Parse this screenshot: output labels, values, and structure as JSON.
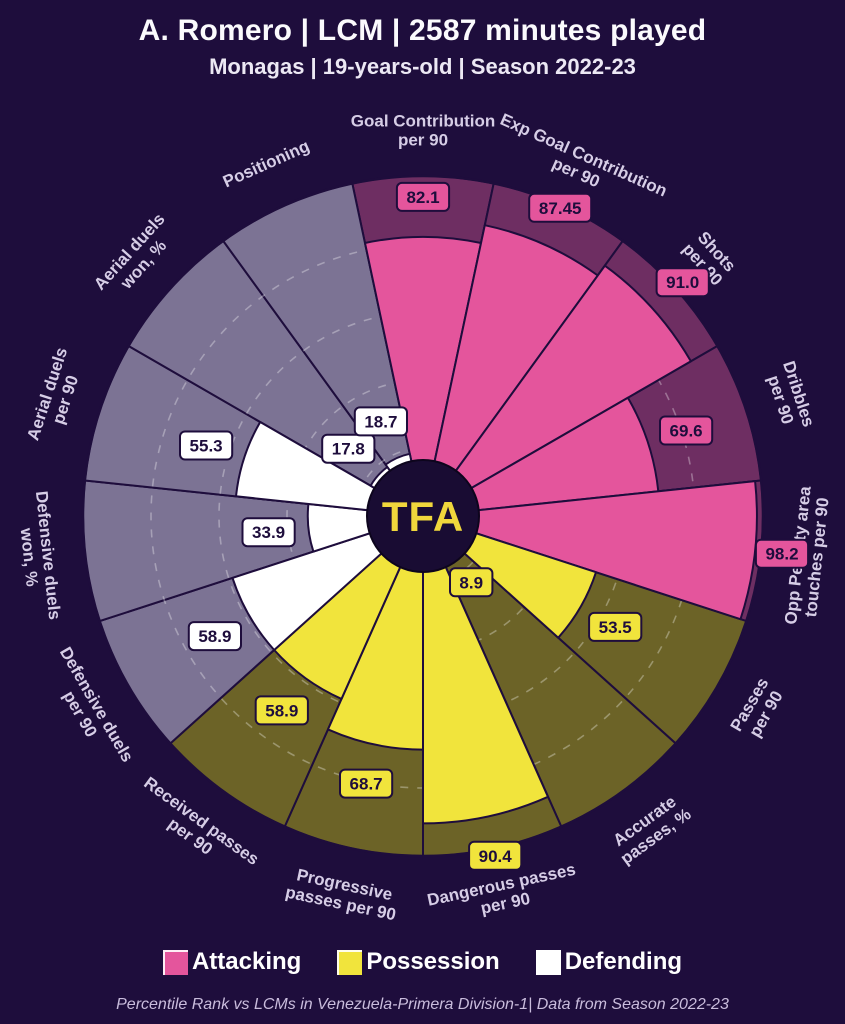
{
  "header": {
    "title": "A. Romero | LCM | 2587 minutes played",
    "subtitle": "Monagas | 19-years-old | Season 2022-23"
  },
  "chart_data": {
    "type": "pie",
    "subtype": "percentile-pizza",
    "title": "A. Romero | LCM | 2587 minutes played",
    "center_logo": "TFA",
    "max_value": 100,
    "gridlines_pct": [
      20,
      40,
      60,
      80
    ],
    "categories": [
      "Goal Contribution per 90",
      "Exp Goal Contribution per 90",
      "Shots per 90",
      "Dribbles per 90",
      "Opp Penalty area touches per 90",
      "Passes per 90",
      "Accurate passes, %",
      "Dangerous passes per 90",
      "Progressive passes per 90",
      "Received passes per 90",
      "Defensive duels per 90",
      "Defensive duels won, %",
      "Aerial duels per 90",
      "Aerial duels won, %",
      "Positioning"
    ],
    "category_lines": [
      [
        "Goal Contribution",
        "per 90"
      ],
      [
        "Exp Goal Contribution",
        "per 90"
      ],
      [
        "Shots",
        "per 90"
      ],
      [
        "Dribbles",
        "per 90"
      ],
      [
        "Opp Penalty area",
        "touches per 90"
      ],
      [
        "Passes",
        "per 90"
      ],
      [
        "Accurate",
        "passes, %"
      ],
      [
        "Dangerous passes",
        "per 90"
      ],
      [
        "Progressive",
        "passes per 90"
      ],
      [
        "Received passes",
        "per 90"
      ],
      [
        "Defensive duels",
        "per 90"
      ],
      [
        "Defensive duels",
        "won, %"
      ],
      [
        "Aerial duels",
        "per 90"
      ],
      [
        "Aerial duels",
        "won, %"
      ],
      [
        "Positioning"
      ]
    ],
    "values": [
      82.1,
      87.45,
      91.0,
      69.6,
      98.2,
      53.5,
      8.9,
      90.4,
      68.7,
      58.9,
      58.9,
      33.9,
      55.3,
      17.8,
      18.7
    ],
    "value_labels": [
      "82.1",
      "87.45",
      "91.0",
      "69.6",
      "98.2",
      "53.5",
      "8.9",
      "90.4",
      "68.7",
      "58.9",
      "58.9",
      "33.9",
      "55.3",
      "17.8",
      "18.7"
    ],
    "slice_groups": [
      "attacking",
      "attacking",
      "attacking",
      "attacking",
      "attacking",
      "possession",
      "possession",
      "possession",
      "possession",
      "possession",
      "defending",
      "defending",
      "defending",
      "defending",
      "defending"
    ],
    "groups": {
      "attacking": {
        "label": "Attacking",
        "fill": "#e4559c",
        "muted": "#6e2e62"
      },
      "possession": {
        "label": "Possession",
        "fill": "#f1e43c",
        "muted": "#6c6327"
      },
      "defending": {
        "label": "Defending",
        "fill": "#ffffff",
        "muted": "#7c7394"
      }
    },
    "legend": [
      {
        "label": "Attacking",
        "color": "#e4559c"
      },
      {
        "label": "Possession",
        "color": "#f1e43c"
      },
      {
        "label": "Defending",
        "color": "#ffffff"
      }
    ],
    "legend_position": "bottom",
    "colors": {
      "background": "#1e0d3c",
      "center_circle": "#190c33",
      "logo_text": "#f0d73c",
      "category_label": "#d6cde6",
      "chip_text": "#1e0d3c",
      "gridline": "rgba(255,255,255,0.32)"
    }
  },
  "footer": {
    "note": "Percentile Rank vs LCMs in Venezuela-Primera Division-1| Data from Season 2022-23"
  }
}
